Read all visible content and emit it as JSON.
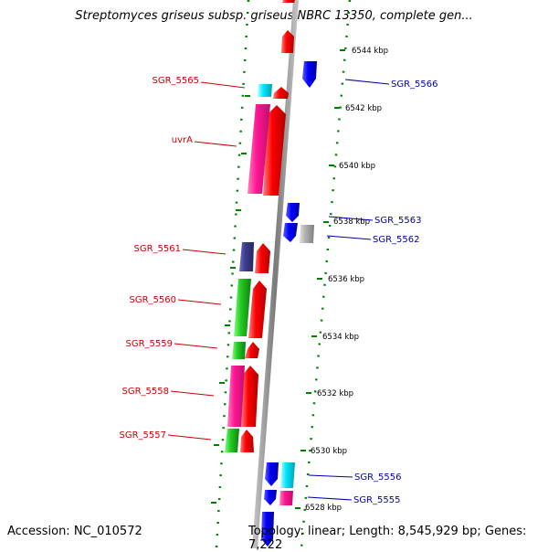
{
  "title": "Streptomyces griseus subsp. griseus NBRC 13350, complete gen...",
  "footer": {
    "accession": "Accession: NC_010572",
    "summary": "Topology: linear; Length: 8,545,929 bp; Genes: 7,222"
  },
  "scale_labels": [
    "6544 kbp",
    "6542 kbp",
    "6540 kbp",
    "6538 kbp",
    "6536 kbp",
    "6534 kbp",
    "6532 kbp",
    "6530 kbp",
    "6528 kbp"
  ],
  "left_gene_labels": [
    "SGR_5565",
    "uvrA",
    "SGR_5561",
    "SGR_5560",
    "SGR_5559",
    "SGR_5558",
    "SGR_5557"
  ],
  "right_gene_labels": [
    "SGR_5566",
    "SGR_5563",
    "SGR_5562",
    "SGR_5556",
    "SGR_5555"
  ],
  "colors": {
    "forward_strand": "#ff0000",
    "reverse_strand": "#0000ff",
    "left_label": "#cc0000",
    "right_label": "#0000aa",
    "magenta": "#ff1493",
    "green": "#22bb22",
    "cyan": "#00e5ff",
    "purple": "#3d3d8f",
    "gray": "#b0b0b0",
    "ruler": "#008000"
  }
}
